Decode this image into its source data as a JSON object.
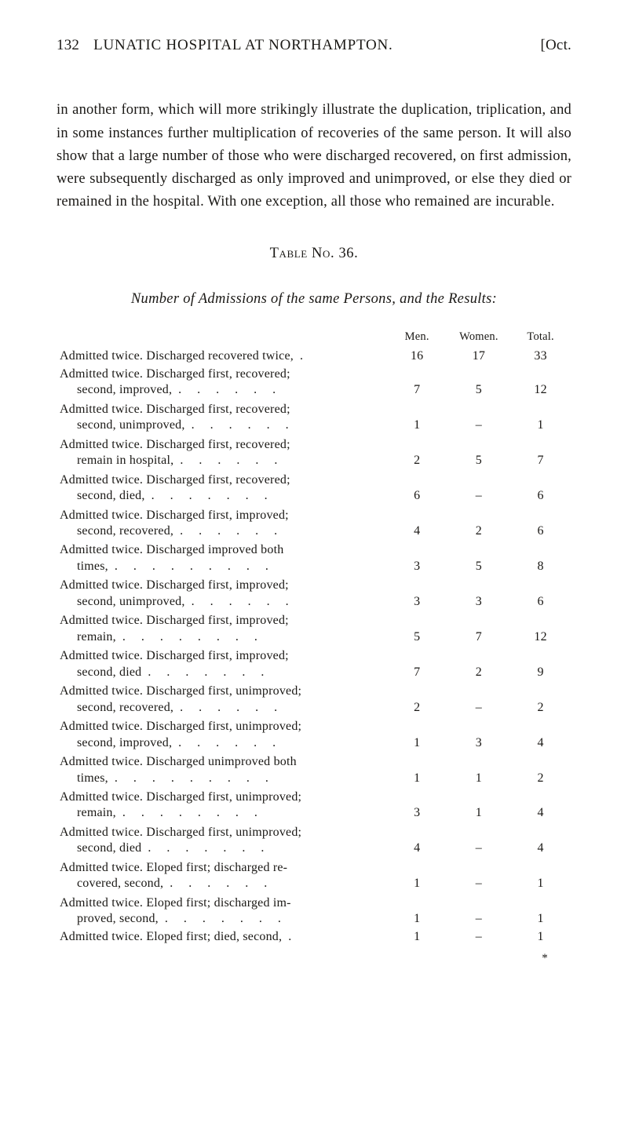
{
  "page": {
    "number": "132",
    "running_title": "LUNATIC HOSPITAL AT NORTHAMPTON.",
    "month": "[Oct."
  },
  "paragraph": "in another form, which will more strikingly illustrate the dupli­cation, triplication, and in some instances further multiplication of recoveries of the same person.  It will also show that a large number of those who were discharged recovered, on first admis­sion, were subsequently discharged as only improved and unimproved, or else they died or remained in the hospital. With one exception, all those who remained are incurable.",
  "table": {
    "label": "Table No. 36.",
    "caption": "Number of Admissions of the same Persons, and the Results:",
    "columns": {
      "c1": "Men.",
      "c2": "Women.",
      "c3": "Total."
    },
    "rows": [
      {
        "line1": "Admitted twice.  Discharged recovered twice,",
        "line2": "",
        "dots": ".",
        "men": "16",
        "women": "17",
        "total": "33"
      },
      {
        "line1": "Admitted twice.  Discharged first, recovered;",
        "line2": "second, improved,",
        "dots": ".    .    .    .    .    .",
        "men": "7",
        "women": "5",
        "total": "12"
      },
      {
        "line1": "Admitted twice.  Discharged first, recovered;",
        "line2": "second, unimproved,",
        "dots": ".    .    .    .    .    .",
        "men": "1",
        "women": "–",
        "total": "1"
      },
      {
        "line1": "Admitted twice.  Discharged first, recovered;",
        "line2": "remain in hospital,",
        "dots": ".    .    .    .    .    .",
        "men": "2",
        "women": "5",
        "total": "7"
      },
      {
        "line1": "Admitted twice.  Discharged first, recovered;",
        "line2": "second, died,",
        "dots": ".    .    .    .    .    .    .",
        "men": "6",
        "women": "–",
        "total": "6"
      },
      {
        "line1": "Admitted twice.  Discharged first, improved;",
        "line2": "second, recovered,",
        "dots": ".    .    .    .    .    .",
        "men": "4",
        "women": "2",
        "total": "6"
      },
      {
        "line1": "Admitted twice.  Discharged improved both",
        "line2": "times,",
        "dots": ".    .    .    .    .    .    .    .    .",
        "men": "3",
        "women": "5",
        "total": "8"
      },
      {
        "line1": "Admitted twice.  Discharged first, improved;",
        "line2": "second, unimproved,",
        "dots": ".    .    .    .    .    .",
        "men": "3",
        "women": "3",
        "total": "6"
      },
      {
        "line1": "Admitted twice.  Discharged first, improved;",
        "line2": "remain,",
        "dots": ".    .    .    .    .    .    .    .",
        "men": "5",
        "women": "7",
        "total": "12"
      },
      {
        "line1": "Admitted twice.  Discharged first, improved;",
        "line2": "second, died",
        "dots": ".    .    .    .    .    .    .",
        "men": "7",
        "women": "2",
        "total": "9"
      },
      {
        "line1": "Admitted twice.  Discharged first, unimproved;",
        "line2": "second, recovered,",
        "dots": ".    .    .    .    .    .",
        "men": "2",
        "women": "–",
        "total": "2"
      },
      {
        "line1": "Admitted twice.  Discharged first, unimproved;",
        "line2": "second, improved,",
        "dots": ".    .    .    .    .    .",
        "men": "1",
        "women": "3",
        "total": "4"
      },
      {
        "line1": "Admitted twice.  Discharged unimproved both",
        "line2": "times,",
        "dots": ".    .    .    .    .    .    .    .    .",
        "men": "1",
        "women": "1",
        "total": "2"
      },
      {
        "line1": "Admitted twice.  Discharged first, unimproved;",
        "line2": "remain,",
        "dots": ".    .    .    .    .    .    .    .",
        "men": "3",
        "women": "1",
        "total": "4"
      },
      {
        "line1": "Admitted twice.  Discharged first, unimproved;",
        "line2": "second, died",
        "dots": ".    .    .    .    .    .    .",
        "men": "4",
        "women": "–",
        "total": "4"
      },
      {
        "line1": "Admitted twice.  Eloped first; discharged re-",
        "line2": "covered, second,",
        "dots": ".    .    .    .    .    .",
        "men": "1",
        "women": "–",
        "total": "1"
      },
      {
        "line1": "Admitted twice.  Eloped first; discharged im-",
        "line2": "proved, second,",
        "dots": ".    .    .    .    .    .    .",
        "men": "1",
        "women": "–",
        "total": "1"
      },
      {
        "line1": "Admitted twice.  Eloped first; died, second,",
        "line2": "",
        "dots": ".",
        "men": "1",
        "women": "–",
        "total": "1"
      }
    ]
  },
  "footmark": "*"
}
